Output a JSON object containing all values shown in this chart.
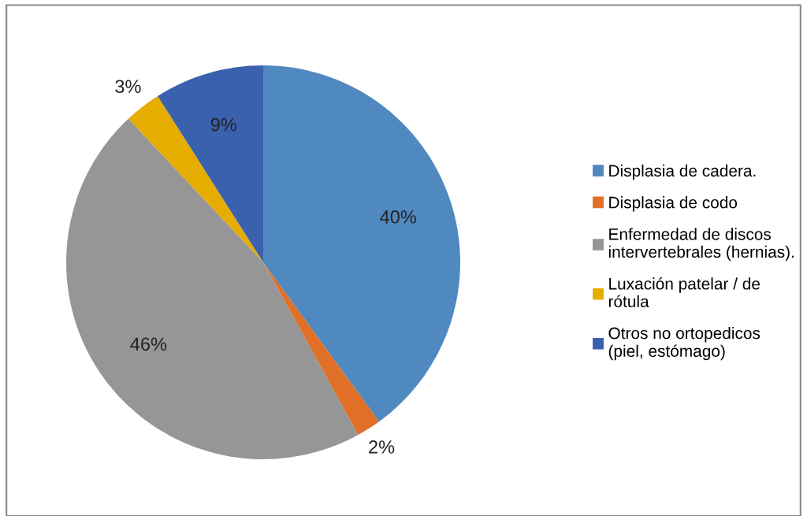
{
  "chart_data": {
    "type": "pie",
    "categories": [
      "Displasia de cadera.",
      "Displasia de codo",
      "Enfermedad de discos\nintervertebrales (hernias).",
      "Luxación patelar / de\nrótula",
      "Otros no ortopedicos\n(piel, estómago)"
    ],
    "values": [
      40,
      2,
      46,
      3,
      9
    ],
    "colors": [
      "#4f89bf",
      "#e07028",
      "#969696",
      "#e6ad00",
      "#3a61ad"
    ],
    "value_labels": [
      "40%",
      "2%",
      "46%",
      "3%",
      "9%"
    ],
    "legend": "right"
  }
}
